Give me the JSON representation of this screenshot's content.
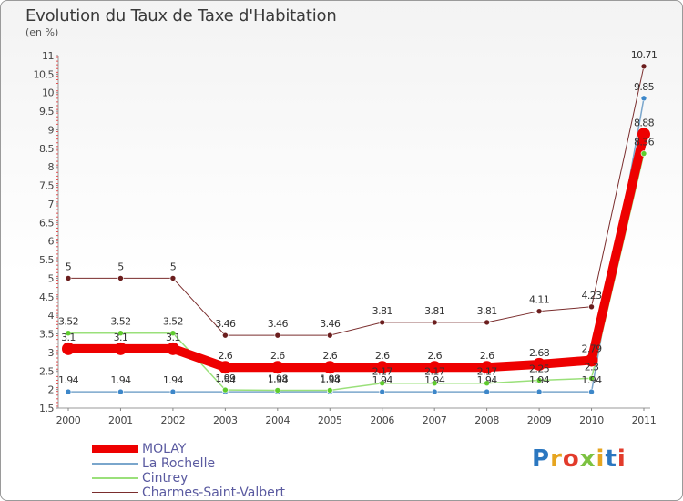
{
  "page": {
    "title": "Evolution du Taux de Taxe d'Habitation",
    "subtitle": "(en %)",
    "watermark": "Proxiti"
  },
  "chart_data": {
    "type": "line",
    "title": "Evolution du Taux de Taxe d'Habitation",
    "ylabel": "(en %)",
    "xlabel": "",
    "x": [
      "2000",
      "2001",
      "2002",
      "2003",
      "2004",
      "2005",
      "2006",
      "2007",
      "2008",
      "2009",
      "2010",
      "2011"
    ],
    "ylim": [
      1.5,
      11
    ],
    "yticks": [
      1.5,
      2,
      2.5,
      3,
      3.5,
      4,
      4.5,
      5,
      5.5,
      6,
      6.5,
      7,
      7.5,
      8,
      8.5,
      9,
      9.5,
      10,
      10.5,
      11
    ],
    "ytick_labels": [
      "1.5",
      "2",
      "2.5",
      "3",
      "3.5",
      "4",
      "4.5",
      "5",
      "5.5",
      "6",
      "6.5",
      "7",
      "7.5",
      "8",
      "8.5",
      "9",
      "9.5",
      "10",
      "10.5",
      "11"
    ],
    "grid": false,
    "legend": "bottom-left",
    "series": [
      {
        "name": "MOLAY",
        "color": "#ee0000",
        "width": 10,
        "values": [
          3.1,
          3.1,
          3.1,
          2.6,
          2.6,
          2.6,
          2.6,
          2.6,
          2.6,
          2.68,
          2.79,
          8.88
        ],
        "labels": [
          "3.1",
          "3.1",
          "3.1",
          "2.6",
          "2.6",
          "2.6",
          "2.6",
          "2.6",
          "2.6",
          "2.68",
          "2.79",
          "8.88"
        ]
      },
      {
        "name": "La Rochelle",
        "color": "#7aa6cc",
        "marker": "#3d87c9",
        "width": 1.5,
        "values": [
          1.94,
          1.94,
          1.94,
          1.94,
          1.94,
          1.94,
          1.94,
          1.94,
          1.94,
          1.94,
          1.94,
          9.85
        ],
        "labels": [
          "1.94",
          "1.94",
          "1.94",
          "1.94",
          "1.94",
          "1.94",
          "1.94",
          "1.94",
          "1.94",
          "1.94",
          "1.94",
          "9.85"
        ]
      },
      {
        "name": "Cintrey",
        "color": "#9ae07a",
        "marker": "#5fcc2e",
        "width": 1.5,
        "values": [
          3.52,
          3.52,
          3.52,
          1.99,
          1.98,
          1.98,
          2.17,
          2.17,
          2.17,
          2.25,
          2.3,
          8.36
        ],
        "labels": [
          "3.52",
          "3.52",
          "3.52",
          "1.99",
          "1.98",
          "1.98",
          "2.17",
          "2.17",
          "2.17",
          "2.25",
          "2.3",
          "8.36"
        ]
      },
      {
        "name": "Charmes-Saint-Valbert",
        "color": "#7a2d2d",
        "marker": "#6b1e1e",
        "width": 1,
        "values": [
          5,
          5,
          5,
          3.46,
          3.46,
          3.46,
          3.81,
          3.81,
          3.81,
          4.11,
          4.23,
          10.71
        ],
        "labels": [
          "5",
          "5",
          "5",
          "3.46",
          "3.46",
          "3.46",
          "3.81",
          "3.81",
          "3.81",
          "4.11",
          "4.23",
          "10.71"
        ]
      }
    ]
  }
}
